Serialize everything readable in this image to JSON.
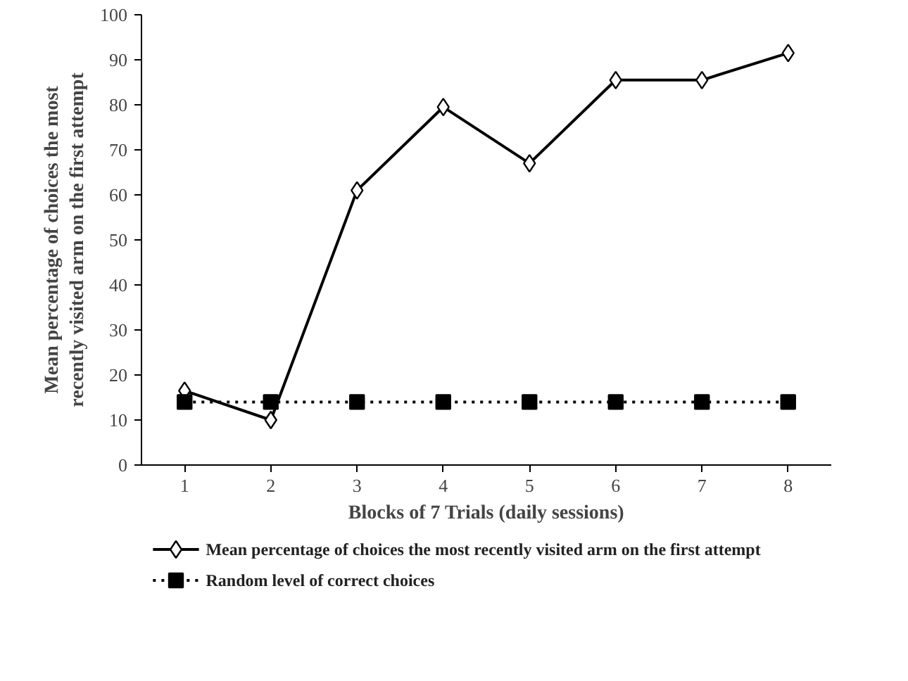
{
  "chart_data": {
    "type": "line",
    "xlabel": "Blocks of 7 Trials (daily sessions)",
    "ylabel": "Mean percentage of choices the most recently visited arm on the first attempt",
    "categories": [
      "1",
      "2",
      "3",
      "4",
      "5",
      "6",
      "7",
      "8"
    ],
    "series": [
      {
        "name": "Mean percentage of choices the most recently visited arm on the first attempt",
        "color": "#000000",
        "marker": "diamond",
        "line_style": "solid",
        "values": [
          16.5,
          10,
          61,
          79.5,
          67,
          85.5,
          85.5,
          91.5
        ]
      },
      {
        "name": "Random level of correct choices",
        "color": "#000000",
        "marker": "square",
        "line_style": "dotted",
        "values": [
          14,
          14,
          14,
          14,
          14,
          14,
          14,
          14
        ]
      }
    ],
    "ylim": [
      0,
      100
    ],
    "yticks": [
      0,
      10,
      20,
      30,
      40,
      50,
      60,
      70,
      80,
      90,
      100
    ],
    "grid": false,
    "legend": "bottom"
  }
}
